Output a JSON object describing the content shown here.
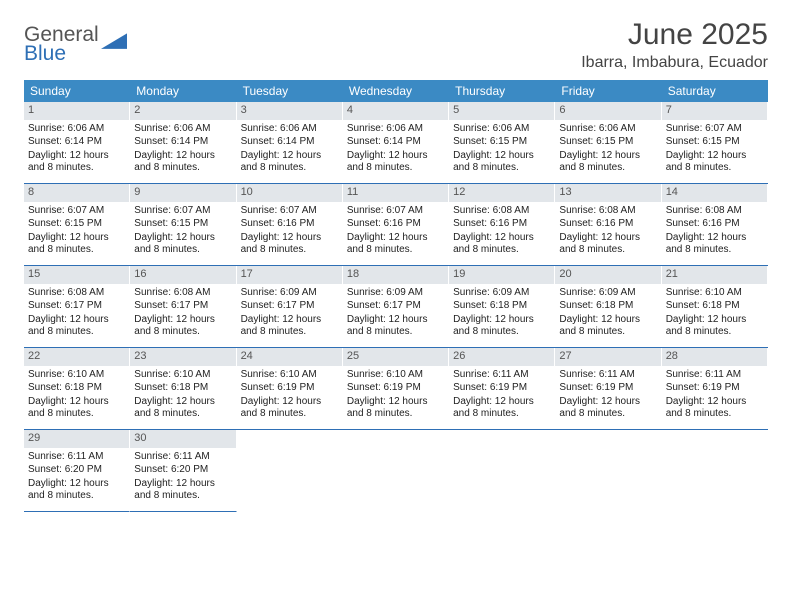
{
  "logo": {
    "word1": "General",
    "word2": "Blue"
  },
  "title": "June 2025",
  "location": "Ibarra, Imbabura, Ecuador",
  "colors": {
    "header_bg": "#3b8ac4",
    "header_text": "#ffffff",
    "daynum_bg": "#e2e6ea",
    "daynum_text": "#555555",
    "rule": "#2e6fb5",
    "title_color": "#444444"
  },
  "weekdays": [
    "Sunday",
    "Monday",
    "Tuesday",
    "Wednesday",
    "Thursday",
    "Friday",
    "Saturday"
  ],
  "days": [
    {
      "n": 1,
      "sr": "6:06 AM",
      "ss": "6:14 PM",
      "dl": "12 hours and 8 minutes."
    },
    {
      "n": 2,
      "sr": "6:06 AM",
      "ss": "6:14 PM",
      "dl": "12 hours and 8 minutes."
    },
    {
      "n": 3,
      "sr": "6:06 AM",
      "ss": "6:14 PM",
      "dl": "12 hours and 8 minutes."
    },
    {
      "n": 4,
      "sr": "6:06 AM",
      "ss": "6:14 PM",
      "dl": "12 hours and 8 minutes."
    },
    {
      "n": 5,
      "sr": "6:06 AM",
      "ss": "6:15 PM",
      "dl": "12 hours and 8 minutes."
    },
    {
      "n": 6,
      "sr": "6:06 AM",
      "ss": "6:15 PM",
      "dl": "12 hours and 8 minutes."
    },
    {
      "n": 7,
      "sr": "6:07 AM",
      "ss": "6:15 PM",
      "dl": "12 hours and 8 minutes."
    },
    {
      "n": 8,
      "sr": "6:07 AM",
      "ss": "6:15 PM",
      "dl": "12 hours and 8 minutes."
    },
    {
      "n": 9,
      "sr": "6:07 AM",
      "ss": "6:15 PM",
      "dl": "12 hours and 8 minutes."
    },
    {
      "n": 10,
      "sr": "6:07 AM",
      "ss": "6:16 PM",
      "dl": "12 hours and 8 minutes."
    },
    {
      "n": 11,
      "sr": "6:07 AM",
      "ss": "6:16 PM",
      "dl": "12 hours and 8 minutes."
    },
    {
      "n": 12,
      "sr": "6:08 AM",
      "ss": "6:16 PM",
      "dl": "12 hours and 8 minutes."
    },
    {
      "n": 13,
      "sr": "6:08 AM",
      "ss": "6:16 PM",
      "dl": "12 hours and 8 minutes."
    },
    {
      "n": 14,
      "sr": "6:08 AM",
      "ss": "6:16 PM",
      "dl": "12 hours and 8 minutes."
    },
    {
      "n": 15,
      "sr": "6:08 AM",
      "ss": "6:17 PM",
      "dl": "12 hours and 8 minutes."
    },
    {
      "n": 16,
      "sr": "6:08 AM",
      "ss": "6:17 PM",
      "dl": "12 hours and 8 minutes."
    },
    {
      "n": 17,
      "sr": "6:09 AM",
      "ss": "6:17 PM",
      "dl": "12 hours and 8 minutes."
    },
    {
      "n": 18,
      "sr": "6:09 AM",
      "ss": "6:17 PM",
      "dl": "12 hours and 8 minutes."
    },
    {
      "n": 19,
      "sr": "6:09 AM",
      "ss": "6:18 PM",
      "dl": "12 hours and 8 minutes."
    },
    {
      "n": 20,
      "sr": "6:09 AM",
      "ss": "6:18 PM",
      "dl": "12 hours and 8 minutes."
    },
    {
      "n": 21,
      "sr": "6:10 AM",
      "ss": "6:18 PM",
      "dl": "12 hours and 8 minutes."
    },
    {
      "n": 22,
      "sr": "6:10 AM",
      "ss": "6:18 PM",
      "dl": "12 hours and 8 minutes."
    },
    {
      "n": 23,
      "sr": "6:10 AM",
      "ss": "6:18 PM",
      "dl": "12 hours and 8 minutes."
    },
    {
      "n": 24,
      "sr": "6:10 AM",
      "ss": "6:19 PM",
      "dl": "12 hours and 8 minutes."
    },
    {
      "n": 25,
      "sr": "6:10 AM",
      "ss": "6:19 PM",
      "dl": "12 hours and 8 minutes."
    },
    {
      "n": 26,
      "sr": "6:11 AM",
      "ss": "6:19 PM",
      "dl": "12 hours and 8 minutes."
    },
    {
      "n": 27,
      "sr": "6:11 AM",
      "ss": "6:19 PM",
      "dl": "12 hours and 8 minutes."
    },
    {
      "n": 28,
      "sr": "6:11 AM",
      "ss": "6:19 PM",
      "dl": "12 hours and 8 minutes."
    },
    {
      "n": 29,
      "sr": "6:11 AM",
      "ss": "6:20 PM",
      "dl": "12 hours and 8 minutes."
    },
    {
      "n": 30,
      "sr": "6:11 AM",
      "ss": "6:20 PM",
      "dl": "12 hours and 8 minutes."
    }
  ],
  "labels": {
    "sunrise_prefix": "Sunrise: ",
    "sunset_prefix": "Sunset: ",
    "daylight_prefix": "Daylight: "
  },
  "start_weekday": 0,
  "cols": 7
}
